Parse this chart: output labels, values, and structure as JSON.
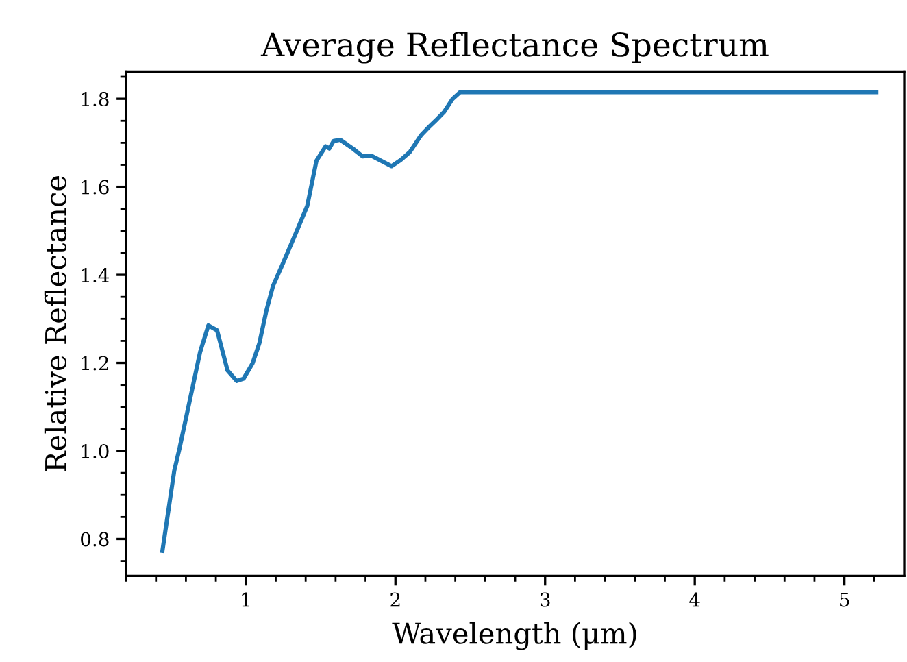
{
  "chart_data": {
    "type": "line",
    "title": "Average Reflectance Spectrum",
    "xlabel": "Wavelength (μm)",
    "ylabel": "Relative Reflectance",
    "x": [
      0.443,
      0.522,
      0.558,
      0.695,
      0.75,
      0.808,
      0.878,
      0.939,
      0.985,
      1.045,
      1.091,
      1.137,
      1.182,
      1.243,
      1.335,
      1.411,
      1.472,
      1.533,
      1.558,
      1.587,
      1.63,
      1.715,
      1.782,
      1.837,
      1.974,
      2.035,
      2.096,
      2.173,
      2.218,
      2.279,
      2.325,
      2.38,
      2.432,
      5.213
    ],
    "series": [
      {
        "color": "#1f77b4",
        "values": [
          0.773,
          0.955,
          1.007,
          1.225,
          1.285,
          1.274,
          1.183,
          1.159,
          1.164,
          1.199,
          1.245,
          1.318,
          1.375,
          1.422,
          1.495,
          1.557,
          1.659,
          1.692,
          1.687,
          1.704,
          1.707,
          1.687,
          1.669,
          1.671,
          1.647,
          1.661,
          1.679,
          1.718,
          1.734,
          1.754,
          1.77,
          1.799,
          1.815,
          1.815
        ]
      }
    ],
    "xlim": [
      0.2,
      5.4
    ],
    "ylim": [
      0.716,
      1.862
    ],
    "xticks": [
      {
        "value": 0.2,
        "label": null
      },
      {
        "value": 0.4,
        "label": null
      },
      {
        "value": 0.6,
        "label": null
      },
      {
        "value": 0.8,
        "label": null
      },
      1,
      {
        "value": 1.2,
        "label": null
      },
      {
        "value": 1.4,
        "label": null
      },
      {
        "value": 1.6,
        "label": null
      },
      {
        "value": 1.8,
        "label": null
      },
      2,
      {
        "value": 2.2,
        "label": null
      },
      {
        "value": 2.4,
        "label": null
      },
      {
        "value": 2.6,
        "label": null
      },
      {
        "value": 2.8,
        "label": null
      },
      3,
      {
        "value": 3.2,
        "label": null
      },
      {
        "value": 3.4,
        "label": null
      },
      {
        "value": 3.6,
        "label": null
      },
      {
        "value": 3.8,
        "label": null
      },
      4,
      {
        "value": 4.2,
        "label": null
      },
      {
        "value": 4.4,
        "label": null
      },
      {
        "value": 4.6,
        "label": null
      },
      {
        "value": 4.8,
        "label": null
      },
      5,
      {
        "value": 5.2,
        "label": null
      }
    ],
    "yticks": [
      {
        "value": 0.75,
        "label": null
      },
      0.8,
      {
        "value": 0.85,
        "label": null
      },
      {
        "value": 0.9,
        "label": null
      },
      {
        "value": 0.95,
        "label": null
      },
      {
        "value": 1.0,
        "label": "1.0"
      },
      {
        "value": 1.05,
        "label": null
      },
      {
        "value": 1.1,
        "label": null
      },
      {
        "value": 1.15,
        "label": null
      },
      1.2,
      {
        "value": 1.25,
        "label": null
      },
      {
        "value": 1.3,
        "label": null
      },
      {
        "value": 1.35,
        "label": null
      },
      1.4,
      {
        "value": 1.45,
        "label": null
      },
      {
        "value": 1.5,
        "label": null
      },
      {
        "value": 1.55,
        "label": null
      },
      1.6,
      {
        "value": 1.65,
        "label": null
      },
      {
        "value": 1.7,
        "label": null
      },
      {
        "value": 1.75,
        "label": null
      },
      1.8,
      {
        "value": 1.85,
        "label": null
      }
    ],
    "grid": false,
    "marker": "none",
    "line_style": "solid"
  }
}
